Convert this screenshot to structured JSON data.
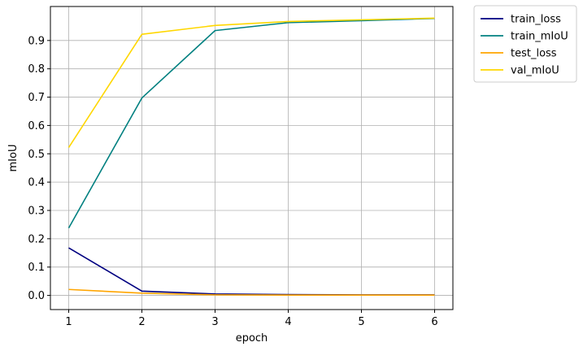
{
  "chart_data": {
    "type": "line",
    "xlabel": "epoch",
    "ylabel": "mIoU",
    "x": [
      1,
      2,
      3,
      4,
      5,
      6
    ],
    "xlim": [
      0.75,
      6.25
    ],
    "ylim": [
      -0.05,
      1.02
    ],
    "xticks": [
      "1",
      "2",
      "3",
      "4",
      "5",
      "6"
    ],
    "yticks": [
      "0.0",
      "0.1",
      "0.2",
      "0.3",
      "0.4",
      "0.5",
      "0.6",
      "0.7",
      "0.8",
      "0.9"
    ],
    "grid": true,
    "legend_position": "outside-upper-right",
    "series": [
      {
        "name": "train_loss",
        "color": "#000080",
        "values": [
          0.168,
          0.015,
          0.005,
          0.003,
          0.002,
          0.002
        ]
      },
      {
        "name": "train_mIoU",
        "color": "#008080",
        "values": [
          0.238,
          0.697,
          0.935,
          0.963,
          0.97,
          0.978
        ]
      },
      {
        "name": "test_loss",
        "color": "#ffa500",
        "values": [
          0.021,
          0.008,
          0.002,
          0.001,
          0.001,
          0.001
        ]
      },
      {
        "name": "val_mIoU",
        "color": "#ffd700",
        "values": [
          0.522,
          0.922,
          0.953,
          0.967,
          0.973,
          0.979
        ]
      }
    ]
  }
}
